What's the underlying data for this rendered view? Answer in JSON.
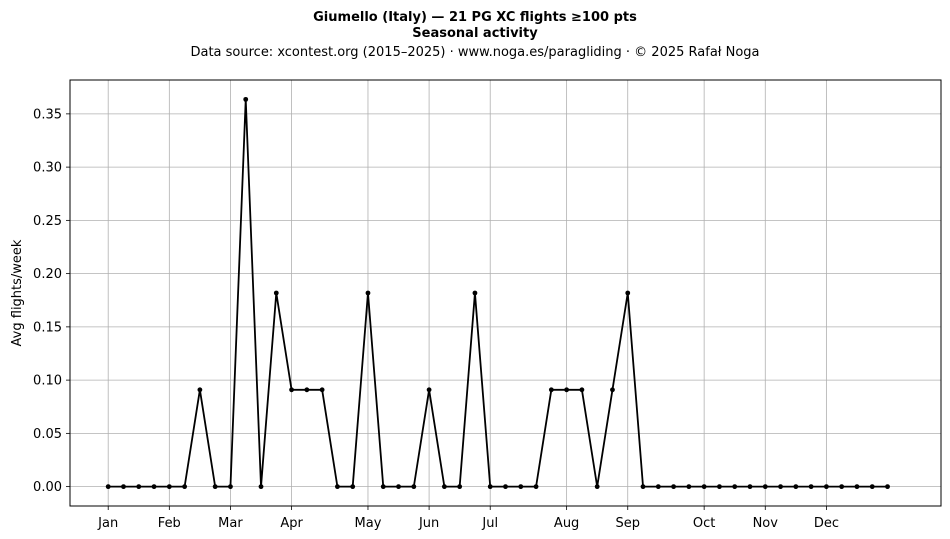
{
  "chart_data": {
    "type": "line",
    "title": "Giumello (Italy)  —  21 PG XC flights ≥100 pts",
    "subtitle": "Seasonal activity",
    "source": "Data source: xcontest.org (2015–2025)  ·  www.noga.es/paragliding  ·  © 2025 Rafał Noga",
    "xlabel": "",
    "ylabel": "Avg flights/week",
    "grid": true,
    "ylim": [
      -0.0182,
      0.3818
    ],
    "xlim": [
      -2.5,
      54.5
    ],
    "x_tick_weeks": [
      0,
      4,
      8,
      12,
      17,
      21,
      25,
      30,
      34,
      39,
      43,
      47
    ],
    "x_tick_labels": [
      "Jan",
      "Feb",
      "Mar",
      "Apr",
      "May",
      "Jun",
      "Jul",
      "Aug",
      "Sep",
      "Oct",
      "Nov",
      "Dec"
    ],
    "y_ticks": [
      0.0,
      0.05,
      0.1,
      0.15,
      0.2,
      0.25,
      0.3,
      0.35
    ],
    "y_tick_labels": [
      "0.00",
      "0.05",
      "0.10",
      "0.15",
      "0.20",
      "0.25",
      "0.30",
      "0.35"
    ],
    "series": [
      {
        "color": "#000000",
        "x": [
          0,
          1,
          2,
          3,
          4,
          5,
          6,
          7,
          8,
          9,
          10,
          11,
          12,
          13,
          14,
          15,
          16,
          17,
          18,
          19,
          20,
          21,
          22,
          23,
          24,
          25,
          26,
          27,
          28,
          29,
          30,
          31,
          32,
          33,
          34,
          35,
          36,
          37,
          38,
          39,
          40,
          41,
          42,
          43,
          44,
          45,
          46,
          47,
          48,
          49,
          50,
          51
        ],
        "values": [
          0,
          0,
          0,
          0,
          0,
          0,
          0.0909,
          0,
          0,
          0.3636,
          0,
          0.1818,
          0.0909,
          0.0909,
          0.0909,
          0,
          0,
          0.1818,
          0,
          0,
          0,
          0.0909,
          0,
          0,
          0.1818,
          0,
          0,
          0,
          0,
          0.0909,
          0.0909,
          0.0909,
          0,
          0.0909,
          0.1818,
          0,
          0,
          0,
          0,
          0,
          0,
          0,
          0,
          0,
          0,
          0,
          0,
          0,
          0,
          0,
          0,
          0
        ]
      }
    ]
  }
}
